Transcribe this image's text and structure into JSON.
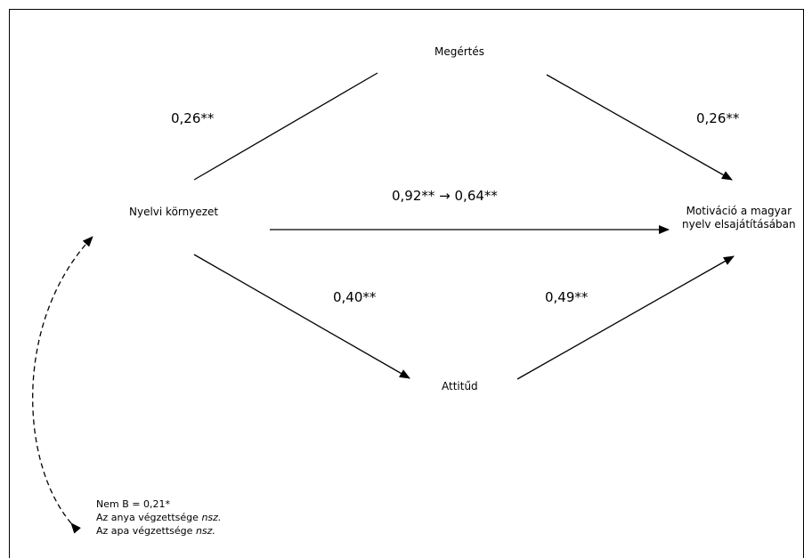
{
  "nodes": {
    "understanding": "Megértés",
    "environment": "Nyelvi környezet",
    "attitude": "Attitűd",
    "motivation_line1": "Motiváció a magyar",
    "motivation_line2": "nyelv elsajátításában"
  },
  "coefficients": {
    "env_to_understanding": "0,26**",
    "understanding_to_motivation": "0,26**",
    "env_to_motivation": "0,92** → 0,64**",
    "env_to_attitude": "0,40**",
    "attitude_to_motivation": "0,49**"
  },
  "controls": {
    "gender": "Nem B = 0,21*",
    "mother_education_label": "Az anya végzettsége",
    "mother_education_value": "nsz.",
    "father_education_label": "Az apa végzettsége",
    "father_education_value": "nsz."
  }
}
